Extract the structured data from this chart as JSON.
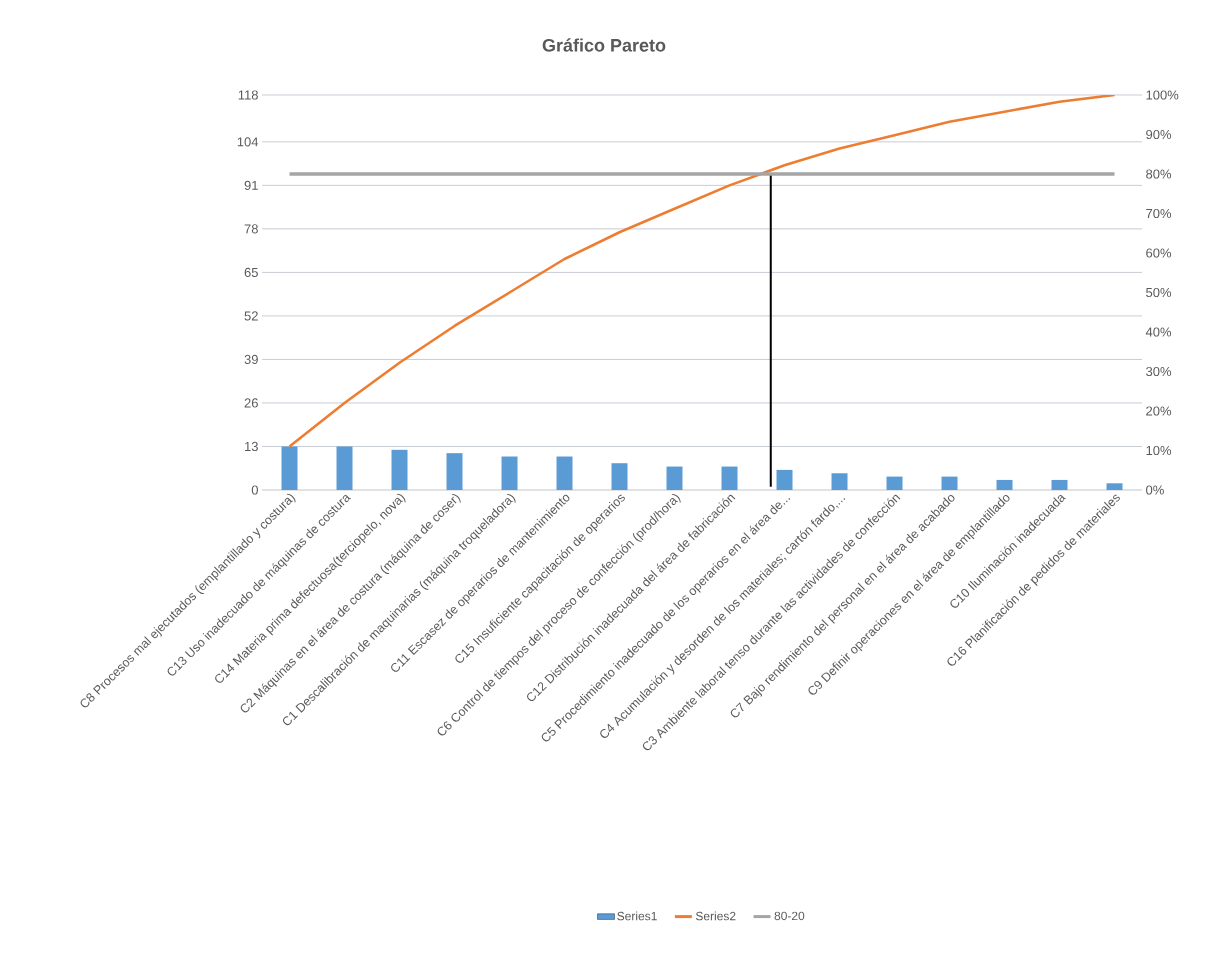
{
  "chart_data": {
    "type": "bar",
    "title": "Gráfico Pareto",
    "categories": [
      "C8 Procesos mal ejecutados (emplantillado y costura)",
      "C13 Uso inadecuado de máquinas de costura",
      "C14 Materia prima defectuosa(terciopelo, nova)",
      "C2 Máquinas en el área de costura (máquina de coser)",
      "C1 Descalibración de maquinarias (máquina troqueladora)",
      "C11 Escasez de operarios de mantenimiento",
      "C15 Insuficiente capacitación de operarios",
      "C6 Control de tiempos del proceso de confección (prod/hora)",
      "C12 Distribución inadecuada del área de fabricación",
      "C5 Procedimiento inadecuado de los operarios en el área de...",
      "C4 Acumulación y desorden de los materiales; cartón fardo,...",
      "C3 Ambiente laboral tenso durante las actividades de confección",
      "C7 Bajo rendimiento del personal en el área de acabado",
      "C9 Definir operaciones en el área de emplantillado",
      "C10 Iluminación inadecuada",
      "C16 Planificación de pedidos de materiales"
    ],
    "series": [
      {
        "name": "Series1",
        "color": "#5b9bd5",
        "values": [
          13,
          13,
          12,
          11,
          10,
          10,
          8,
          7,
          7,
          6,
          5,
          4,
          4,
          3,
          3,
          2
        ]
      },
      {
        "name": "Series2",
        "type": "line",
        "color": "#ed7d31",
        "values": [
          13,
          26,
          38,
          49,
          59,
          69,
          77,
          84,
          91,
          97,
          102,
          106,
          110,
          113,
          116,
          118
        ]
      },
      {
        "name": "80-20",
        "type": "line",
        "color": "#a5a5a5",
        "axis": "y2",
        "values": [
          80,
          80,
          80,
          80,
          80,
          80,
          80,
          80,
          80,
          80,
          80,
          80,
          80,
          80,
          80,
          80
        ]
      }
    ],
    "ylim": [
      0,
      118
    ],
    "yticks": [
      0,
      13,
      26,
      39,
      52,
      65,
      78,
      91,
      104,
      118
    ],
    "y2lim": [
      0,
      100
    ],
    "y2ticks": [
      {
        "value": 0,
        "label": "0%"
      },
      {
        "value": 10,
        "label": "10%"
      },
      {
        "value": 20,
        "label": "20%"
      },
      {
        "value": 30,
        "label": "30%"
      },
      {
        "value": 40,
        "label": "40%"
      },
      {
        "value": 50,
        "label": "50%"
      },
      {
        "value": 60,
        "label": "60%"
      },
      {
        "value": 70,
        "label": "70%"
      },
      {
        "value": 80,
        "label": "80%"
      },
      {
        "value": 90,
        "label": "90%"
      },
      {
        "value": 100,
        "label": "100%"
      }
    ],
    "ref_lines": [
      {
        "axis": "x",
        "value": "C5 Procedimiento inadecuado de los operarios en el área de...",
        "color": "#000000"
      }
    ],
    "grid": "y",
    "legend": "bottom",
    "marker": "none",
    "line_style": "solid"
  }
}
